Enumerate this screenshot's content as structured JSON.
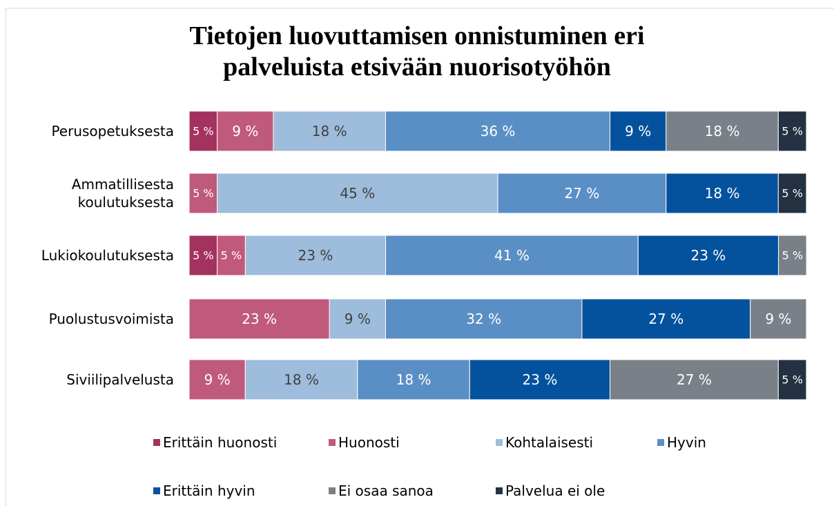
{
  "chart_data": {
    "type": "stacked-barh",
    "title": "Tietojen luovuttamisen onnistuminen eri palveluista etsivään nuorisotyöhön",
    "categories": [
      "Perusopetuksesta",
      "Ammatillisesta koulutuksesta",
      "Lukiokoulutuksesta",
      "Puolustusvoimista",
      "Siviilipalvelusta"
    ],
    "xlim": [
      0,
      100
    ],
    "legend": "bottom",
    "series": [
      {
        "name": "Erittäin huonosti",
        "color": "#a4325e",
        "values": [
          4.55,
          null,
          4.55,
          null,
          null
        ],
        "value_labels": [
          "5 %",
          null,
          "5 %",
          null,
          null
        ]
      },
      {
        "name": "Huonosti",
        "color": "#c05a7d",
        "values": [
          9.09,
          4.55,
          4.55,
          22.73,
          9.09
        ],
        "value_labels": [
          "9 %",
          "5 %",
          "5 %",
          "23 %",
          "9 %"
        ]
      },
      {
        "name": "Kohtalaisesti",
        "color": "#9ebcdb",
        "values": [
          18.18,
          45.45,
          22.73,
          9.09,
          18.18
        ],
        "value_labels": [
          "18 %",
          "45 %",
          "23 %",
          "9 %",
          "18 %"
        ]
      },
      {
        "name": "Hyvin",
        "color": "#5a8fc5",
        "values": [
          36.36,
          27.27,
          40.91,
          31.82,
          18.18
        ],
        "value_labels": [
          "36 %",
          "27 %",
          "41 %",
          "32 %",
          "18 %"
        ]
      },
      {
        "name": "Erittäin hyvin",
        "color": "#04529e",
        "values": [
          9.09,
          18.18,
          22.73,
          27.27,
          22.73
        ],
        "value_labels": [
          "9 %",
          "18 %",
          "23 %",
          "27 %",
          "23 %"
        ]
      },
      {
        "name": "Ei osaa sanoa",
        "color": "#7a8087",
        "values": [
          18.18,
          null,
          4.55,
          9.09,
          27.27
        ],
        "value_labels": [
          "18 %",
          null,
          "5 %",
          "9 %",
          "27 %"
        ]
      },
      {
        "name": "Palvelua ei ole",
        "color": "#243143",
        "values": [
          4.55,
          4.55,
          null,
          null,
          4.55
        ],
        "value_labels": [
          "5 %",
          "5 %",
          null,
          null,
          "5 %"
        ]
      }
    ]
  }
}
